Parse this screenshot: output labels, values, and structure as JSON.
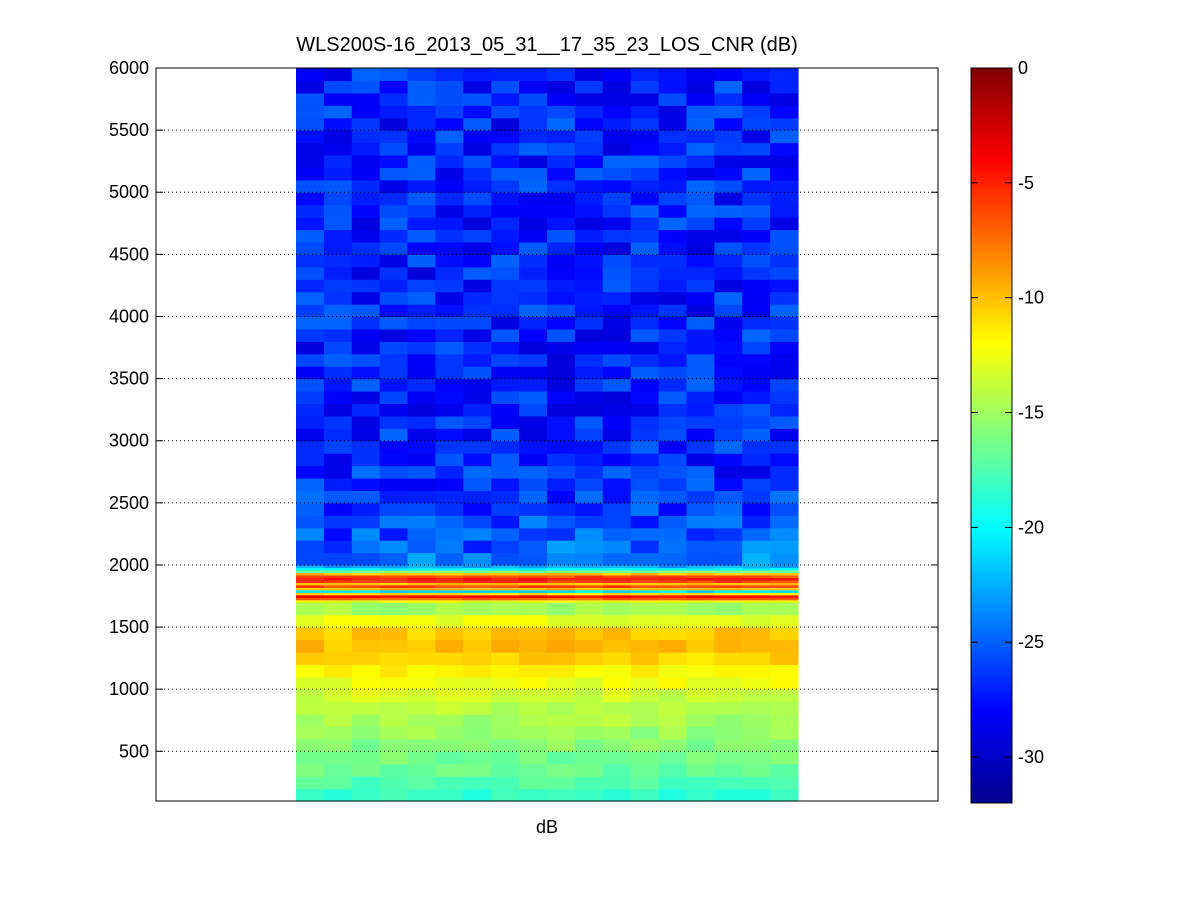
{
  "chart_data": {
    "type": "heatmap",
    "title": "WLS200S-16_2013_05_31__17_35_23_LOS_CNR (dB)",
    "xlabel": "dB",
    "ylabel": "",
    "ylim": [
      100,
      6000
    ],
    "y_ticks": [
      500,
      1000,
      1500,
      2000,
      2500,
      3000,
      3500,
      4000,
      4500,
      5000,
      5500,
      6000
    ],
    "grid": "y-dotted",
    "colormap": "jet",
    "colorbar": {
      "range": [
        -32,
        0
      ],
      "ticks": [
        0,
        -5,
        -10,
        -15,
        -20,
        -25,
        -30
      ]
    },
    "columns": 18,
    "band_profile": [
      {
        "y": 150,
        "value": -18.5
      },
      {
        "y": 300,
        "value": -17.0
      },
      {
        "y": 500,
        "value": -16.0
      },
      {
        "y": 700,
        "value": -15.0
      },
      {
        "y": 900,
        "value": -14.0
      },
      {
        "y": 1000,
        "value": -13.0
      },
      {
        "y": 1100,
        "value": -12.2
      },
      {
        "y": 1200,
        "value": -11.2
      },
      {
        "y": 1300,
        "value": -10.2
      },
      {
        "y": 1400,
        "value": -9.8
      },
      {
        "y": 1500,
        "value": -10.8
      },
      {
        "y": 1600,
        "value": -14.5
      },
      {
        "y": 1680,
        "value": -15.0
      },
      {
        "y": 1720,
        "value": -12.0
      },
      {
        "y": 1740,
        "value": -2.0
      },
      {
        "y": 1760,
        "value": -6.0
      },
      {
        "y": 1790,
        "value": -21.0
      },
      {
        "y": 1820,
        "value": -4.0
      },
      {
        "y": 1850,
        "value": -10.0
      },
      {
        "y": 1880,
        "value": -4.0
      },
      {
        "y": 1920,
        "value": -7.0
      },
      {
        "y": 1960,
        "value": -19.0
      },
      {
        "y": 2000,
        "value": -24.0
      },
      {
        "y": 2200,
        "value": -25.5
      },
      {
        "y": 2600,
        "value": -26.5
      },
      {
        "y": 3500,
        "value": -27.0
      },
      {
        "y": 6000,
        "value": -26.8
      }
    ]
  }
}
